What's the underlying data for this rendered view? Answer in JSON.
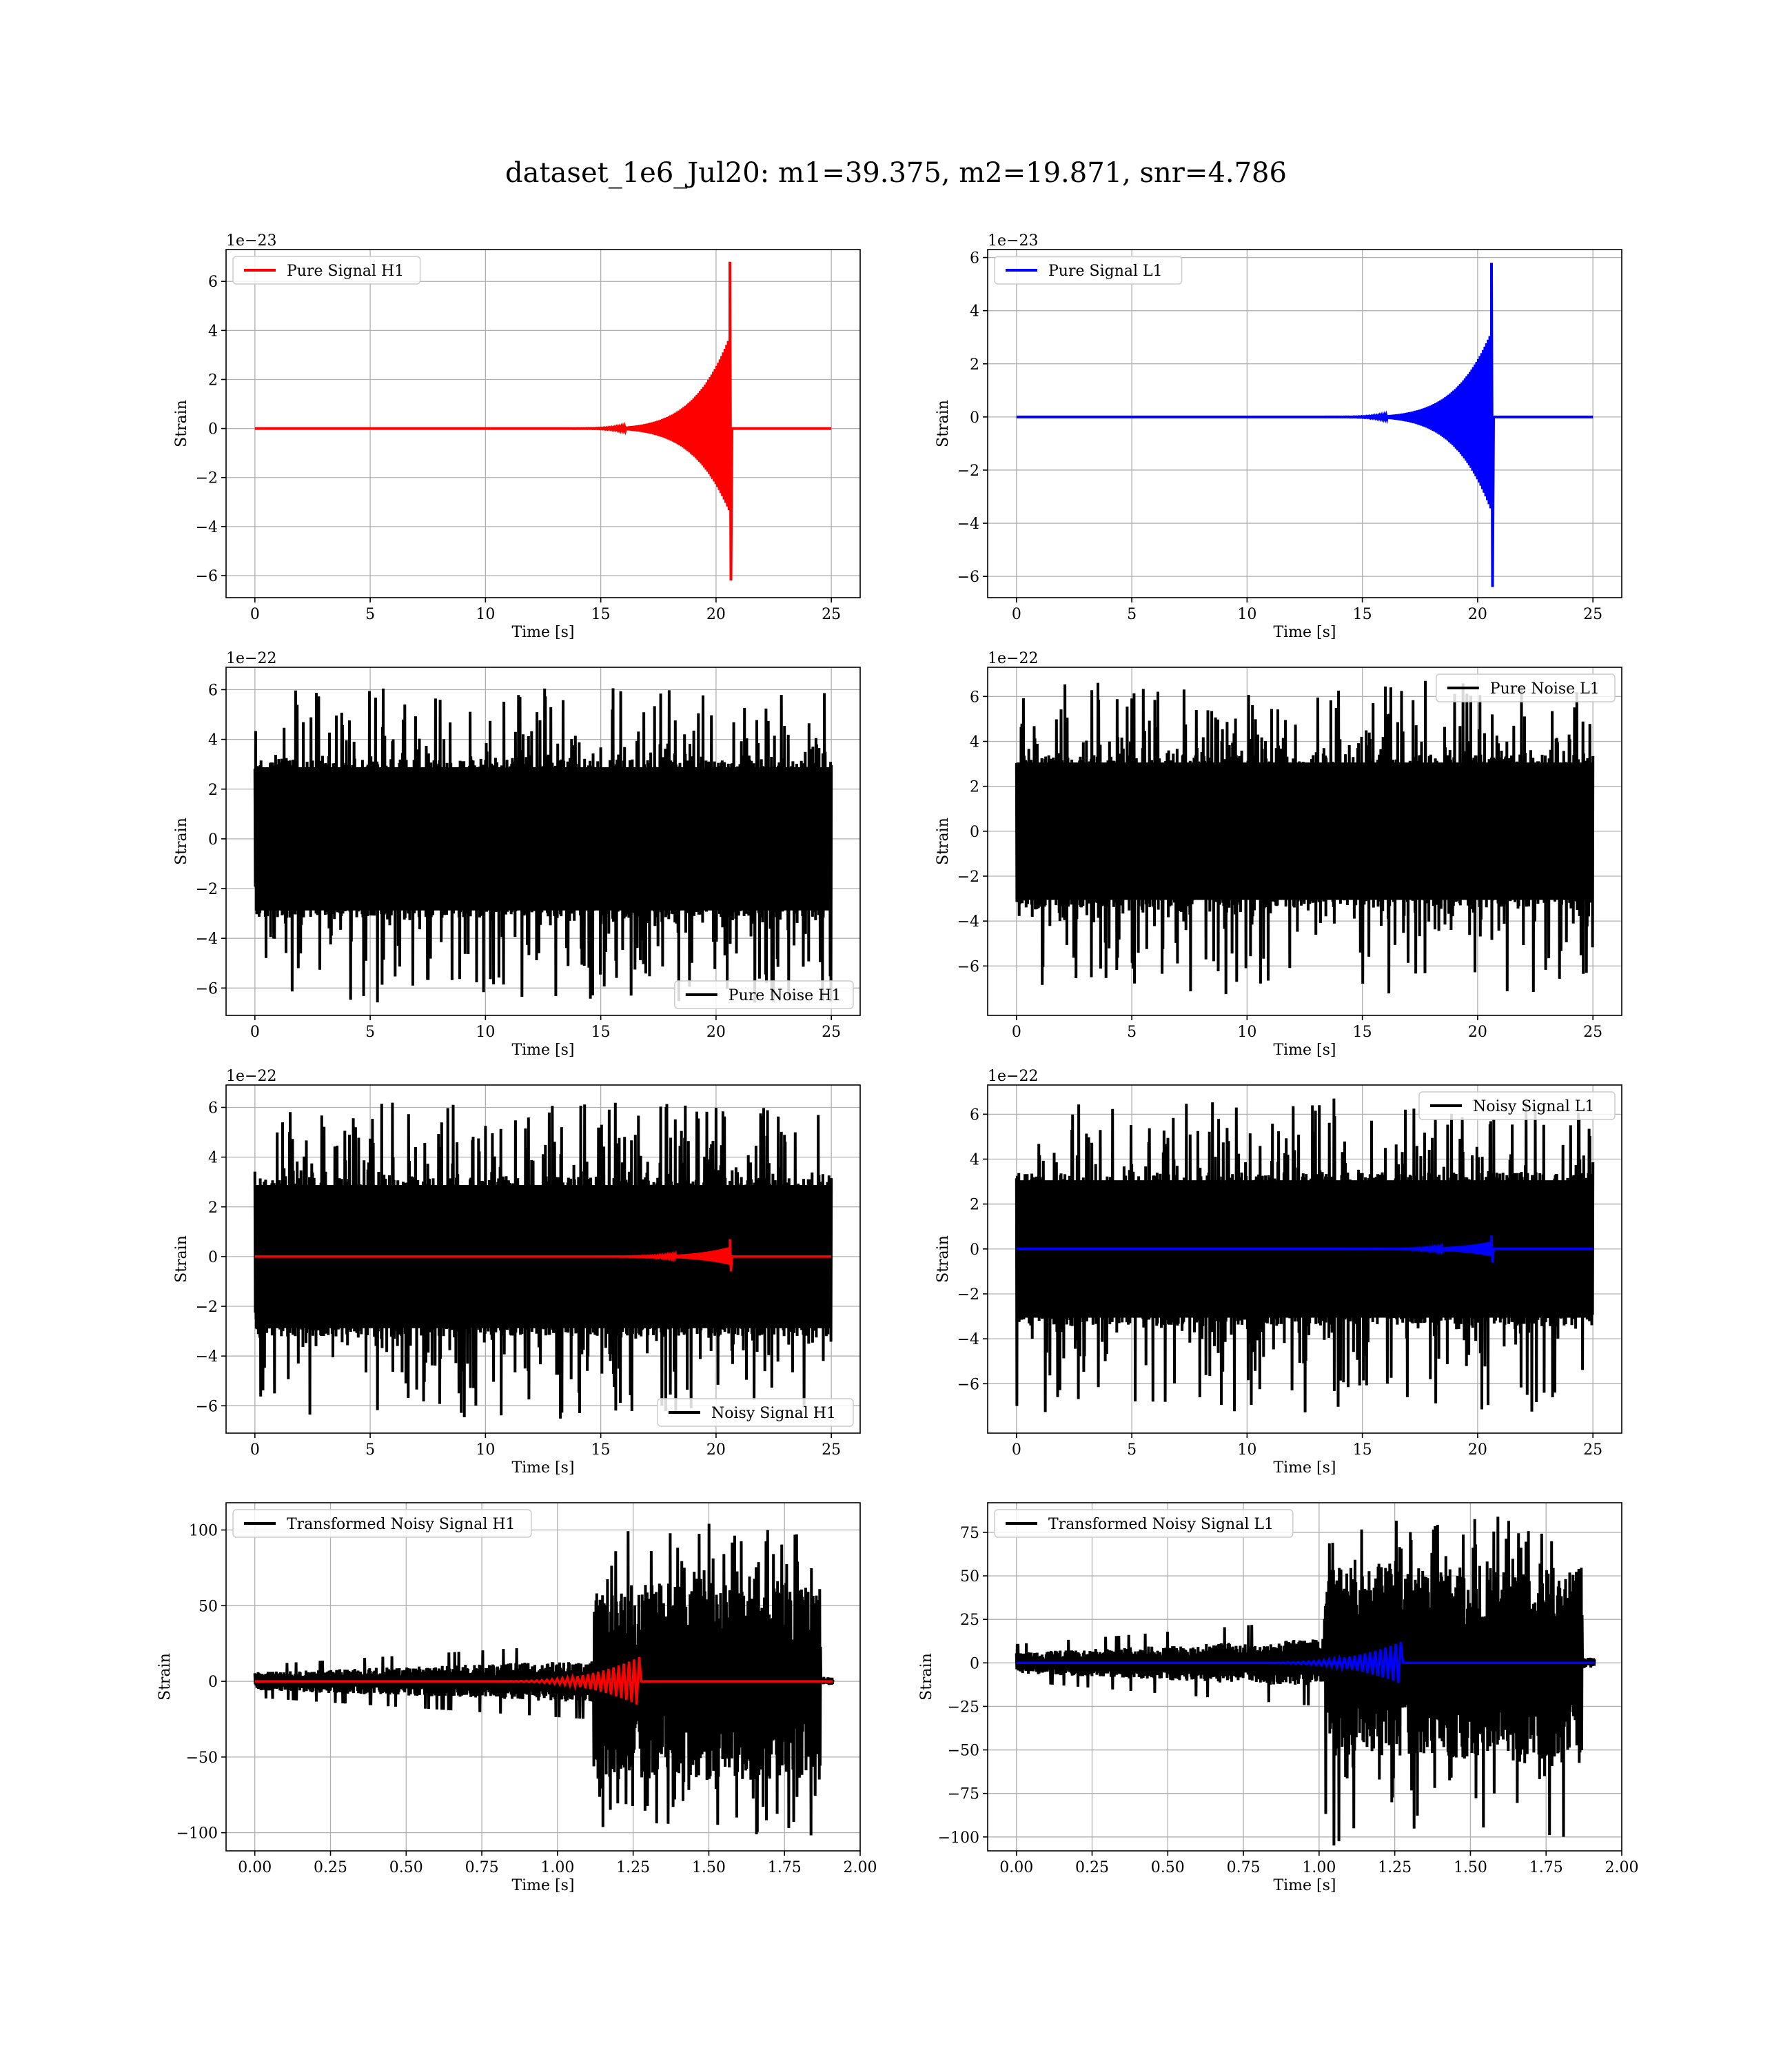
{
  "figure": {
    "title": "dataset_1e6_Jul20: m1=39.375, m2=19.871, snr=4.786"
  },
  "chart_data": [
    {
      "id": "p1",
      "type": "line",
      "legend_loc": "upper-left",
      "xlabel": "Time [s]",
      "ylabel": "Strain",
      "offset_text": "1e−23",
      "xlim": [
        -1.25,
        26.25
      ],
      "ylim": [
        -6.9,
        7.3
      ],
      "xticks": [
        0,
        5,
        10,
        15,
        20,
        25
      ],
      "xtick_labels": [
        "0",
        "5",
        "10",
        "15",
        "20",
        "25"
      ],
      "yticks": [
        -6,
        -4,
        -2,
        0,
        2,
        4,
        6
      ],
      "ytick_labels": [
        "−6",
        "−4",
        "−2",
        "0",
        "2",
        "4",
        "6"
      ],
      "series": [
        {
          "name": "Pure Signal H1",
          "color": "#ff0000",
          "kind": "chirp",
          "x_end": 25,
          "peak_x": 20.6,
          "peak_pos": 6.8,
          "peak_neg": -6.2,
          "in_legend": true
        }
      ]
    },
    {
      "id": "p2",
      "type": "line",
      "legend_loc": "upper-left",
      "xlabel": "Time [s]",
      "ylabel": "Strain",
      "offset_text": "1e−23",
      "xlim": [
        -1.25,
        26.25
      ],
      "ylim": [
        -6.8,
        6.3
      ],
      "xticks": [
        0,
        5,
        10,
        15,
        20,
        25
      ],
      "xtick_labels": [
        "0",
        "5",
        "10",
        "15",
        "20",
        "25"
      ],
      "yticks": [
        -6,
        -4,
        -2,
        0,
        2,
        4,
        6
      ],
      "ytick_labels": [
        "−6",
        "−4",
        "−2",
        "0",
        "2",
        "4",
        "6"
      ],
      "series": [
        {
          "name": "Pure Signal L1",
          "color": "#0000ff",
          "kind": "chirp",
          "x_end": 25,
          "peak_x": 20.6,
          "peak_pos": 5.8,
          "peak_neg": -6.4,
          "in_legend": true
        }
      ]
    },
    {
      "id": "p3",
      "type": "line",
      "legend_loc": "lower-right",
      "xlabel": "Time [s]",
      "ylabel": "Strain",
      "offset_text": "1e−22",
      "xlim": [
        -1.25,
        26.25
      ],
      "ylim": [
        -7.1,
        6.9
      ],
      "xticks": [
        0,
        5,
        10,
        15,
        20,
        25
      ],
      "xtick_labels": [
        "0",
        "5",
        "10",
        "15",
        "20",
        "25"
      ],
      "yticks": [
        -6,
        -4,
        -2,
        0,
        2,
        4,
        6
      ],
      "ytick_labels": [
        "−6",
        "−4",
        "−2",
        "0",
        "2",
        "4",
        "6"
      ],
      "series": [
        {
          "name": "Pure Noise H1",
          "color": "#000000",
          "kind": "noise",
          "x_end": 25,
          "core": 3.2,
          "max_pos": 6.2,
          "max_neg": -6.6,
          "in_legend": true
        }
      ]
    },
    {
      "id": "p4",
      "type": "line",
      "legend_loc": "upper-right",
      "xlabel": "Time [s]",
      "ylabel": "Strain",
      "offset_text": "1e−22",
      "xlim": [
        -1.25,
        26.25
      ],
      "ylim": [
        -8.2,
        7.3
      ],
      "xticks": [
        0,
        5,
        10,
        15,
        20,
        25
      ],
      "xtick_labels": [
        "0",
        "5",
        "10",
        "15",
        "20",
        "25"
      ],
      "yticks": [
        -6,
        -4,
        -2,
        0,
        2,
        4,
        6
      ],
      "ytick_labels": [
        "−6",
        "−4",
        "−2",
        "0",
        "2",
        "4",
        "6"
      ],
      "series": [
        {
          "name": "Pure Noise L1",
          "color": "#000000",
          "kind": "noise",
          "x_end": 25,
          "core": 3.4,
          "max_pos": 6.7,
          "max_neg": -7.3,
          "in_legend": true
        }
      ]
    },
    {
      "id": "p5",
      "type": "line",
      "legend_loc": "lower-right",
      "xlabel": "Time [s]",
      "ylabel": "Strain",
      "offset_text": "1e−22",
      "xlim": [
        -1.25,
        26.25
      ],
      "ylim": [
        -7.1,
        6.9
      ],
      "xticks": [
        0,
        5,
        10,
        15,
        20,
        25
      ],
      "xtick_labels": [
        "0",
        "5",
        "10",
        "15",
        "20",
        "25"
      ],
      "yticks": [
        -6,
        -4,
        -2,
        0,
        2,
        4,
        6
      ],
      "ytick_labels": [
        "−6",
        "−4",
        "−2",
        "0",
        "2",
        "4",
        "6"
      ],
      "series": [
        {
          "name": "Noisy Signal H1",
          "color": "#000000",
          "kind": "noise",
          "x_end": 25,
          "core": 3.2,
          "max_pos": 6.2,
          "max_neg": -6.6,
          "in_legend": true
        },
        {
          "name": "",
          "color": "#ff0000",
          "kind": "chirp",
          "x_end": 25,
          "peak_x": 20.6,
          "peak_pos": 0.7,
          "peak_neg": -0.6,
          "in_legend": false
        }
      ]
    },
    {
      "id": "p6",
      "type": "line",
      "legend_loc": "upper-right",
      "xlabel": "Time [s]",
      "ylabel": "Strain",
      "offset_text": "1e−22",
      "xlim": [
        -1.25,
        26.25
      ],
      "ylim": [
        -8.2,
        7.3
      ],
      "xticks": [
        0,
        5,
        10,
        15,
        20,
        25
      ],
      "xtick_labels": [
        "0",
        "5",
        "10",
        "15",
        "20",
        "25"
      ],
      "yticks": [
        -6,
        -4,
        -2,
        0,
        2,
        4,
        6
      ],
      "ytick_labels": [
        "−6",
        "−4",
        "−2",
        "0",
        "2",
        "4",
        "6"
      ],
      "series": [
        {
          "name": "Noisy Signal L1",
          "color": "#000000",
          "kind": "noise",
          "x_end": 25,
          "core": 3.4,
          "max_pos": 6.7,
          "max_neg": -7.3,
          "in_legend": true
        },
        {
          "name": "",
          "color": "#0000ff",
          "kind": "chirp",
          "x_end": 25,
          "peak_x": 20.6,
          "peak_pos": 0.6,
          "peak_neg": -0.6,
          "in_legend": false
        }
      ]
    },
    {
      "id": "p7",
      "type": "line",
      "legend_loc": "upper-left",
      "xlabel": "Time [s]",
      "ylabel": "Strain",
      "offset_text": "",
      "xlim": [
        -0.095,
        2.0
      ],
      "ylim": [
        -112,
        118
      ],
      "xticks": [
        0.0,
        0.25,
        0.5,
        0.75,
        1.0,
        1.25,
        1.5,
        1.75,
        2.0
      ],
      "xtick_labels": [
        "0.00",
        "0.25",
        "0.50",
        "0.75",
        "1.00",
        "1.25",
        "1.50",
        "1.75",
        "2.00"
      ],
      "yticks": [
        -100,
        -50,
        0,
        50,
        100
      ],
      "ytick_labels": [
        "−100",
        "−50",
        "0",
        "50",
        "100"
      ],
      "series": [
        {
          "name": "Transformed Noisy Signal H1",
          "color": "#000000",
          "kind": "tnoise",
          "x_end": 1.91,
          "jump_x": 1.12,
          "end_x": 1.87,
          "low": 10,
          "high": 65,
          "max_pos": 105,
          "max_neg": -102,
          "in_legend": true
        },
        {
          "name": "",
          "color": "#ff0000",
          "kind": "tchirp",
          "x_end": 1.91,
          "peak_x": 1.27,
          "amp": 16,
          "in_legend": false
        }
      ]
    },
    {
      "id": "p8",
      "type": "line",
      "legend_loc": "upper-left",
      "xlabel": "Time [s]",
      "ylabel": "Strain",
      "offset_text": "",
      "xlim": [
        -0.095,
        2.0
      ],
      "ylim": [
        -108,
        92
      ],
      "xticks": [
        0.0,
        0.25,
        0.5,
        0.75,
        1.0,
        1.25,
        1.5,
        1.75,
        2.0
      ],
      "xtick_labels": [
        "0.00",
        "0.25",
        "0.50",
        "0.75",
        "1.00",
        "1.25",
        "1.50",
        "1.75",
        "2.00"
      ],
      "yticks": [
        -100,
        -75,
        -50,
        -25,
        0,
        25,
        50,
        75
      ],
      "ytick_labels": [
        "−100",
        "−75",
        "−50",
        "−25",
        "0",
        "25",
        "50",
        "75"
      ],
      "series": [
        {
          "name": "Transformed Noisy Signal L1",
          "color": "#000000",
          "kind": "tnoise",
          "x_end": 1.91,
          "jump_x": 1.02,
          "end_x": 1.87,
          "low": 10,
          "high": 55,
          "max_pos": 88,
          "max_neg": -105,
          "in_legend": true
        },
        {
          "name": "",
          "color": "#0000ff",
          "kind": "tchirp",
          "x_end": 1.91,
          "peak_x": 1.27,
          "amp": 12,
          "in_legend": false
        }
      ]
    }
  ]
}
